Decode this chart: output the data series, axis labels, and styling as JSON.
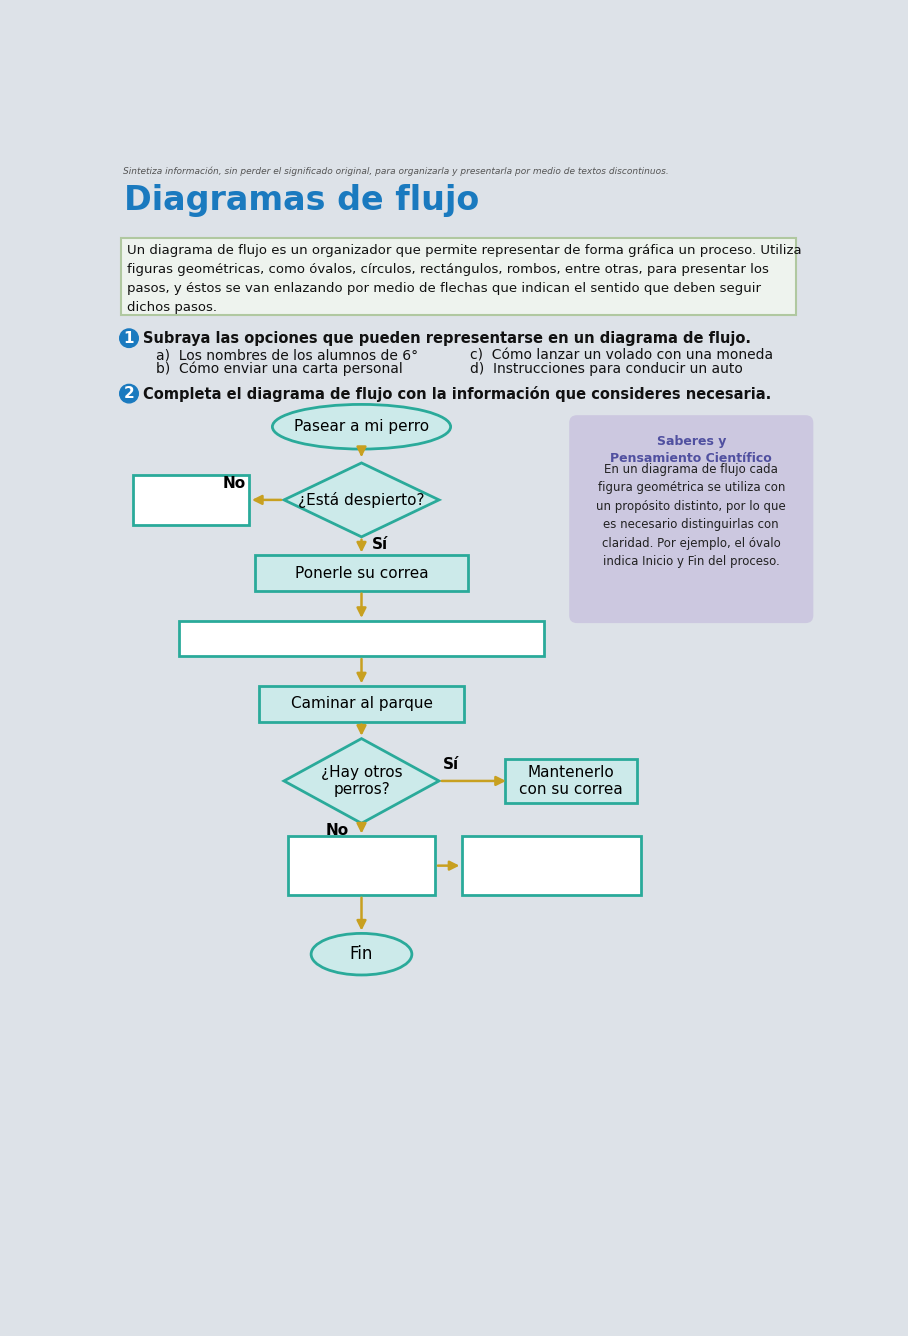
{
  "page_bg": "#dde2e8",
  "top_subtitle": "Sintetiza información, sin perder el significado original, para organizarla y presentarla por medio de textos discontinuos.",
  "title": "Diagramas de flujo",
  "title_color": "#1a7abf",
  "definition_box_bg": "#eef3ee",
  "definition_box_border": "#b0c8a0",
  "definition_text_line1": "Un diagrama de flujo es un organizador que permite representar de forma gráfica un proceso. Utiliza",
  "definition_text_line2": "figuras geométricas, como óvalos, círculos, rectángulos, rombos, entre otras, para presentar los",
  "definition_text_line3": "pasos, y éstos se van enlazando por medio de flechas que indican el sentido que deben seguir",
  "definition_text_line4": "dichos pasos.",
  "q1_text": "Subraya las opciones que pueden representarse en un diagrama de flujo.",
  "q1_a": "a)  Los nombres de los alumnos de 6°",
  "q1_b": "b)  Cómo enviar una carta personal",
  "q1_c": "c)  Cómo lanzar un volado con una moneda",
  "q1_d": "d)  Instrucciones para conducir un auto",
  "q2_text": "Completa el diagrama de flujo con la información que consideres necesaria.",
  "arrow_color": "#c8a020",
  "shape_border": "#2aaa9a",
  "oval_fill": "#cceaea",
  "diamond_fill": "#cceaea",
  "rect_fill": "#cceaea",
  "rect_empty_fill": "#ffffff",
  "sidebar_bg": "#ccc8e0",
  "sidebar_title": "Saberes y\nPensamiento Científico",
  "sidebar_title_color": "#5050a0",
  "sidebar_text": "En un diagrama de flujo cada\nfigura geométrica se utiliza con\nun propósito distinto, por lo que\nes necesario distinguirlas con\nclaridad. Por ejemplo, el óvalo\nindica Inicio y Fin del proceso.",
  "start_text": "Pasear a mi perro",
  "diamond1_text": "¿Está despierto?",
  "rect1_text": "Ponerle su correa",
  "rect3_text": "Caminar al parque",
  "diamond2_text": "¿Hay otros\nperros?",
  "mantener_text": "Mantenerlo\ncon su correa",
  "end_text": "Fin",
  "label_no1": "No",
  "label_si1": "Sí",
  "label_si2": "Sí",
  "label_no2": "No"
}
